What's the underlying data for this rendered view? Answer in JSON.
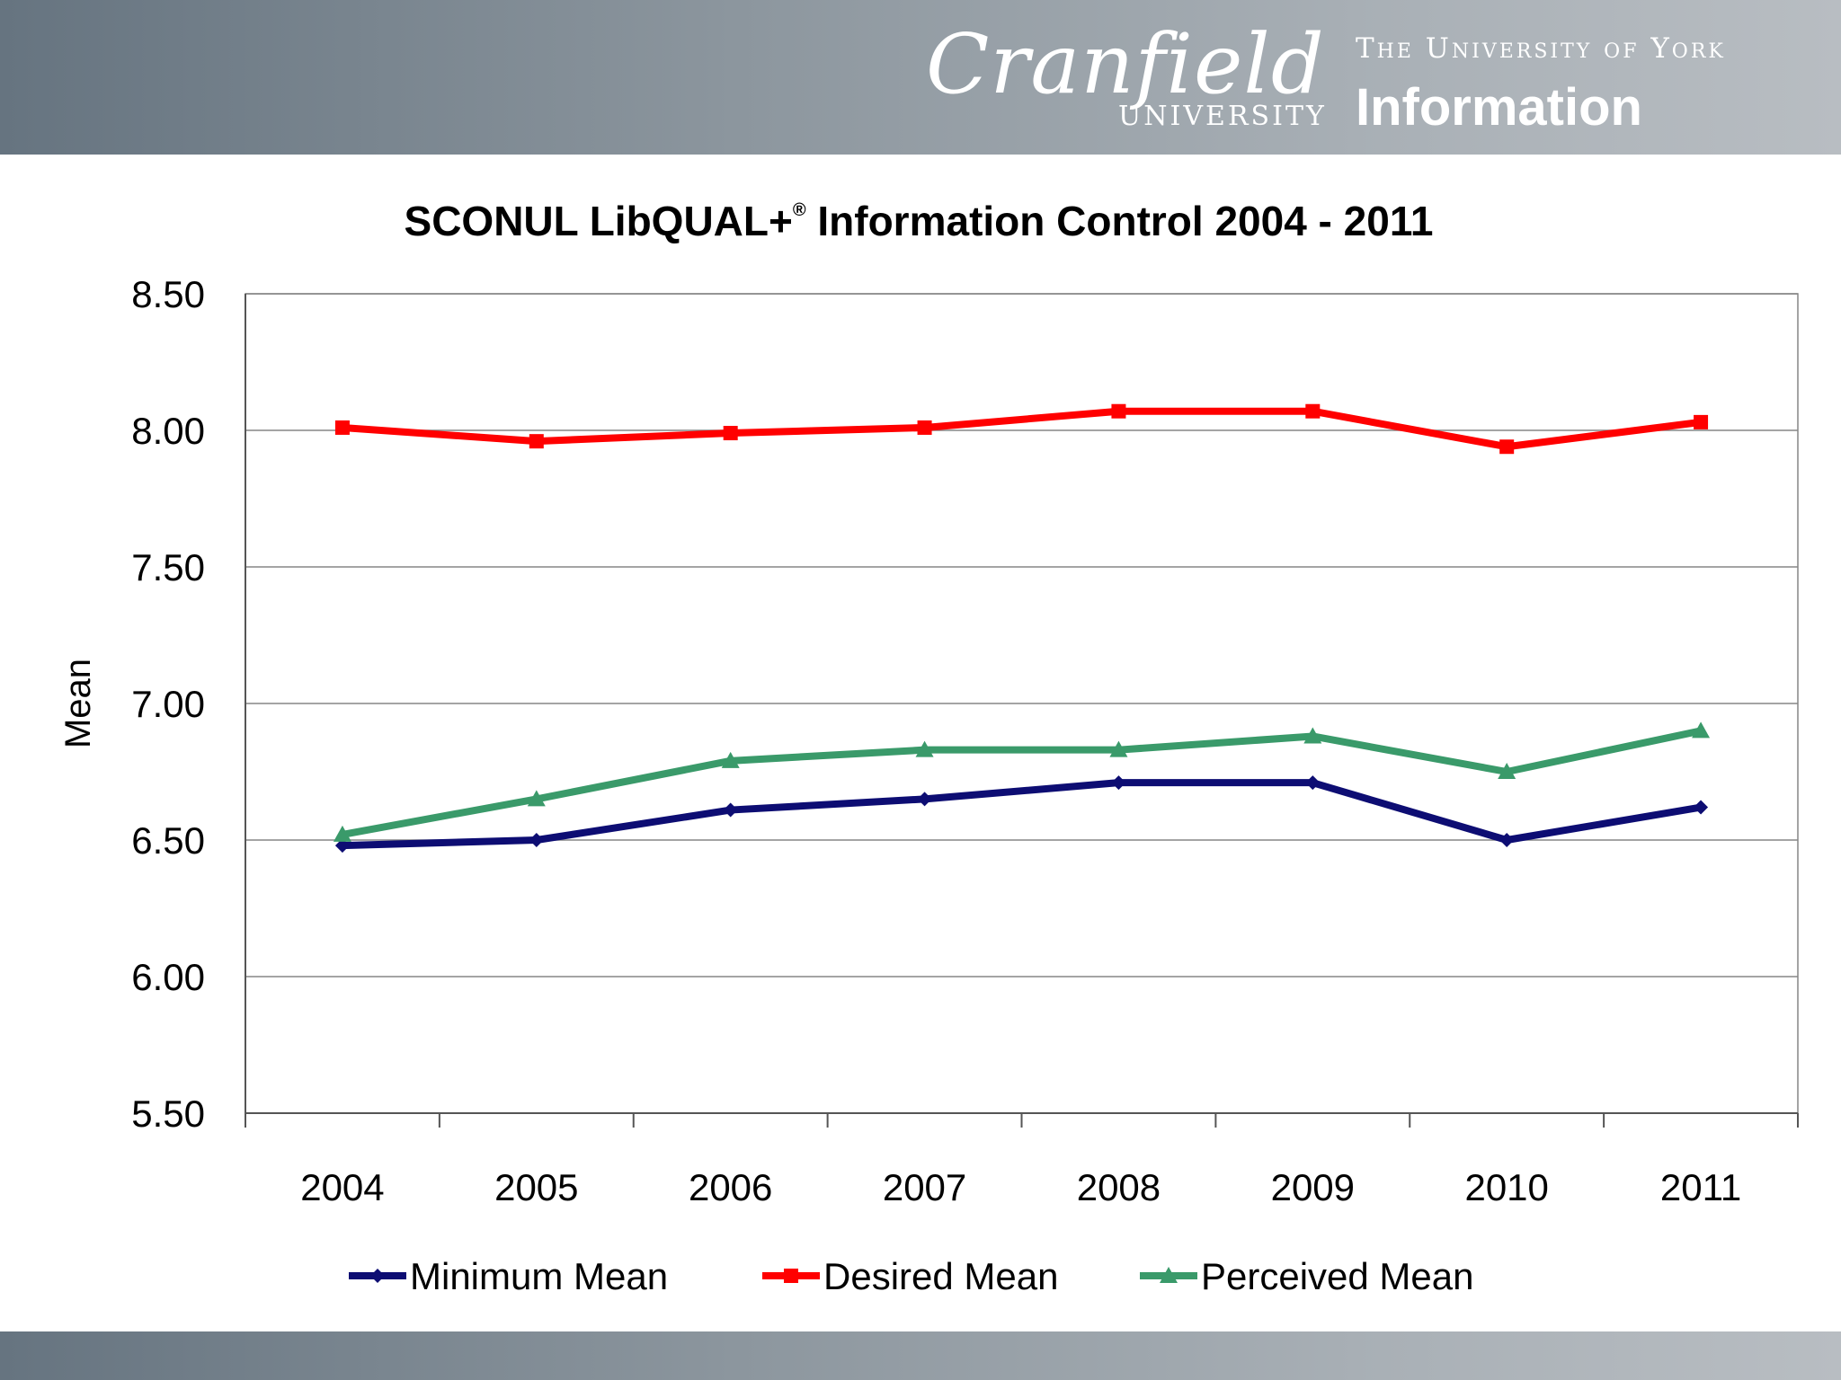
{
  "branding": {
    "cranfield_word": "Cranfield",
    "cranfield_sub": "UNIVERSITY",
    "york_line1": "The University of York",
    "york_line2": "Information"
  },
  "chart_data": {
    "type": "line",
    "title": "SCONUL LibQUAL+",
    "title_mark": "®",
    "title_rest": " Information Control 2004 - 2011",
    "ylabel": "Mean",
    "xlabel": "",
    "ylim": [
      5.5,
      8.5
    ],
    "yticks": [
      "5.50",
      "6.00",
      "6.50",
      "7.00",
      "7.50",
      "8.00",
      "8.50"
    ],
    "ytick_values": [
      5.5,
      6.0,
      6.5,
      7.0,
      7.5,
      8.0,
      8.5
    ],
    "categories": [
      "2004",
      "2005",
      "2006",
      "2007",
      "2008",
      "2009",
      "2010",
      "2011"
    ],
    "grid": true,
    "legend": "bottom",
    "series": [
      {
        "name": "Minimum Mean",
        "color": "#0d0d73",
        "marker": "diamond",
        "values": [
          6.48,
          6.5,
          6.61,
          6.65,
          6.71,
          6.71,
          6.5,
          6.62
        ]
      },
      {
        "name": "Desired Mean",
        "color": "#ff0000",
        "marker": "square",
        "values": [
          8.01,
          7.96,
          7.99,
          8.01,
          8.07,
          8.07,
          7.94,
          8.03
        ]
      },
      {
        "name": "Perceived Mean",
        "color": "#3a9a6a",
        "marker": "triangle",
        "values": [
          6.52,
          6.65,
          6.79,
          6.83,
          6.83,
          6.88,
          6.75,
          6.9
        ]
      }
    ]
  }
}
